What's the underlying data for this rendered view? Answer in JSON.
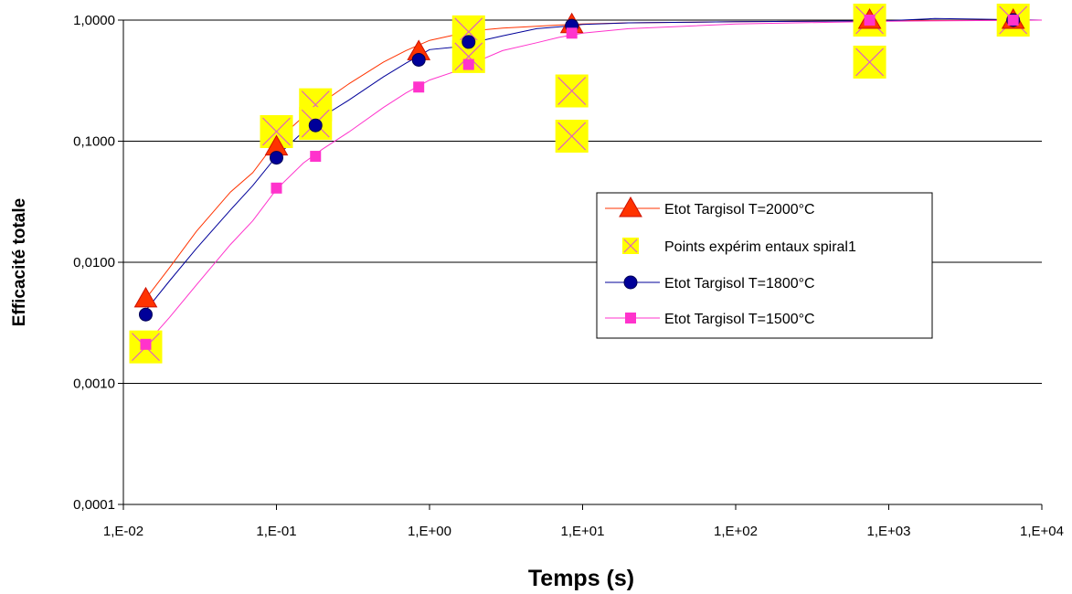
{
  "chart_data": {
    "type": "scatter",
    "title": "",
    "xlabel": "Temps (s)",
    "ylabel": "Efficacité totale",
    "x_scale": "log",
    "y_scale": "log",
    "xlim": [
      0.01,
      10000
    ],
    "ylim": [
      0.0001,
      1
    ],
    "grid": "horizontal",
    "legend_placement": "center-right",
    "x_tick_labels": [
      "1,E-02",
      "1,E-01",
      "1,E+00",
      "1,E+01",
      "1,E+02",
      "1,E+03",
      "1,E+04"
    ],
    "y_tick_labels": [
      "1,0000",
      "0,1000",
      "0,0100",
      "0,0010",
      "0,0001"
    ],
    "series": [
      {
        "name": "Etot Targisol T=2000°C",
        "color": "#ff3300",
        "marker": "triangle",
        "curve": {
          "x": [
            0.014,
            0.02,
            0.03,
            0.05,
            0.07,
            0.1,
            0.15,
            0.2,
            0.3,
            0.5,
            0.7,
            1.0,
            1.5,
            2,
            3,
            5,
            7,
            10,
            20,
            100,
            1000,
            10000
          ],
          "y": [
            0.005,
            0.009,
            0.018,
            0.038,
            0.055,
            0.1,
            0.16,
            0.21,
            0.3,
            0.45,
            0.56,
            0.68,
            0.76,
            0.82,
            0.86,
            0.89,
            0.91,
            0.93,
            0.95,
            0.97,
            0.99,
            1.0
          ]
        },
        "points": {
          "x": [
            0.014,
            0.1,
            0.85,
            8.5,
            750,
            6500
          ],
          "y": [
            0.005,
            0.09,
            0.55,
            0.92,
            1.0,
            1.0
          ]
        }
      },
      {
        "name": "Points expérim entaux spiral1",
        "color": "#ffff00",
        "marker": "x-square",
        "points": {
          "x": [
            0.014,
            0.1,
            0.18,
            0.18,
            1.8,
            1.8,
            8.5,
            8.5,
            750,
            750,
            6500
          ],
          "y": [
            0.002,
            0.12,
            0.2,
            0.14,
            0.8,
            0.5,
            0.26,
            0.11,
            1.0,
            0.45,
            1.0
          ]
        }
      },
      {
        "name": "Etot Targisol T=1800°C",
        "color": "#000099",
        "marker": "circle",
        "curve": {
          "x": [
            0.014,
            0.02,
            0.03,
            0.05,
            0.07,
            0.1,
            0.15,
            0.2,
            0.3,
            0.5,
            0.7,
            1.0,
            1.5,
            2,
            3,
            5,
            7,
            10,
            20,
            100,
            1000,
            2000,
            10000
          ],
          "y": [
            0.004,
            0.007,
            0.013,
            0.027,
            0.043,
            0.075,
            0.12,
            0.16,
            0.22,
            0.34,
            0.44,
            0.57,
            0.6,
            0.66,
            0.74,
            0.85,
            0.88,
            0.92,
            0.95,
            0.97,
            0.99,
            1.03,
            1.0
          ]
        },
        "points": {
          "x": [
            0.014,
            0.1,
            0.18,
            0.85,
            1.8,
            8.5,
            6500
          ],
          "y": [
            0.0037,
            0.073,
            0.135,
            0.47,
            0.66,
            0.9,
            1.0
          ]
        }
      },
      {
        "name": "Etot Targisol T=1500°C",
        "color": "#ff33cc",
        "marker": "square",
        "curve": {
          "x": [
            0.014,
            0.02,
            0.03,
            0.05,
            0.07,
            0.1,
            0.15,
            0.2,
            0.3,
            0.5,
            0.7,
            1.0,
            1.5,
            2,
            3,
            5,
            7,
            10,
            20,
            100,
            1000,
            10000
          ],
          "y": [
            0.0021,
            0.0035,
            0.0065,
            0.014,
            0.022,
            0.04,
            0.066,
            0.086,
            0.12,
            0.19,
            0.25,
            0.32,
            0.38,
            0.45,
            0.56,
            0.65,
            0.72,
            0.78,
            0.85,
            0.93,
            0.98,
            1.0
          ]
        },
        "points": {
          "x": [
            0.014,
            0.1,
            0.18,
            0.85,
            1.8,
            8.5,
            750,
            6500
          ],
          "y": [
            0.0021,
            0.041,
            0.075,
            0.28,
            0.43,
            0.78,
            1.0,
            1.0
          ]
        }
      }
    ]
  }
}
